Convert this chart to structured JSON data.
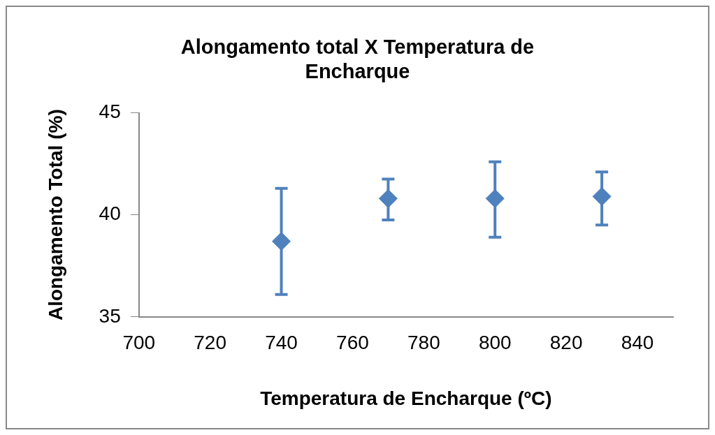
{
  "chart_data": {
    "type": "scatter",
    "title": "Alongamento total X Temperatura de Encharque",
    "xlabel": "Temperatura de Encharque (ºC)",
    "ylabel": "Alongamento Total (%)",
    "x": [
      740,
      770,
      800,
      830
    ],
    "series": [
      {
        "color": "#4f81bd",
        "values": [
          38.7,
          40.8,
          40.8,
          40.9
        ],
        "errors": [
          [
            36.1,
            41.3
          ],
          [
            39.75,
            41.75
          ],
          [
            38.9,
            42.6
          ],
          [
            39.5,
            42.1
          ]
        ]
      }
    ],
    "xlim": [
      700,
      850
    ],
    "xticks": [
      700,
      720,
      740,
      760,
      780,
      800,
      820,
      840
    ],
    "ylim": [
      35,
      45
    ],
    "yticks": [
      35,
      40,
      45
    ],
    "grid": false,
    "legend": false,
    "marker": "diamond"
  }
}
